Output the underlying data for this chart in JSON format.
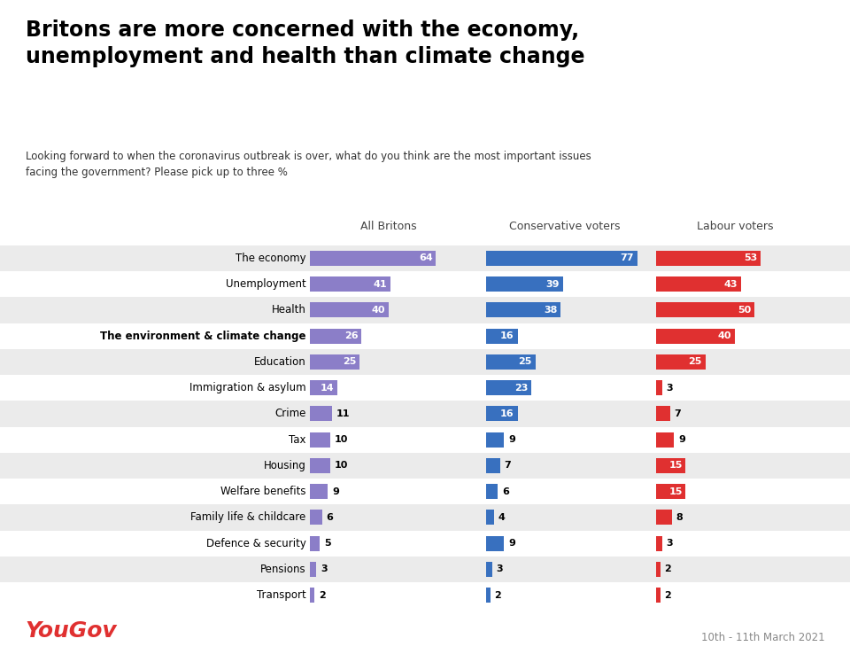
{
  "title": "Britons are more concerned with the economy,\nunemployment and health than climate change",
  "subtitle": "Looking forward to when the coronavirus outbreak is over, what do you think are the most important issues\nfacing the government? Please pick up to three %",
  "categories": [
    "The economy",
    "Unemployment",
    "Health",
    "The environment & climate change",
    "Education",
    "Immigration & asylum",
    "Crime",
    "Tax",
    "Housing",
    "Welfare benefits",
    "Family life & childcare",
    "Defence & security",
    "Pensions",
    "Transport"
  ],
  "bold_category": "The environment & climate change",
  "all_britons": [
    64,
    41,
    40,
    26,
    25,
    14,
    11,
    10,
    10,
    9,
    6,
    5,
    3,
    2
  ],
  "conservative": [
    77,
    39,
    38,
    16,
    25,
    23,
    16,
    9,
    7,
    6,
    4,
    9,
    3,
    2
  ],
  "labour": [
    53,
    43,
    50,
    40,
    25,
    3,
    7,
    9,
    15,
    15,
    8,
    3,
    2,
    2
  ],
  "color_britons": "#8B7EC8",
  "color_conservative": "#3870BF",
  "color_labour": "#E03030",
  "col_headers": [
    "All Britons",
    "Conservative voters",
    "Labour voters"
  ],
  "background_color": "#EBEBEB",
  "date_text": "10th - 11th March 2021",
  "yougov_color": "#E03030",
  "max_val": 80,
  "inside_threshold_britons": 10,
  "inside_threshold_conservative": 8,
  "inside_threshold_labour": 10
}
